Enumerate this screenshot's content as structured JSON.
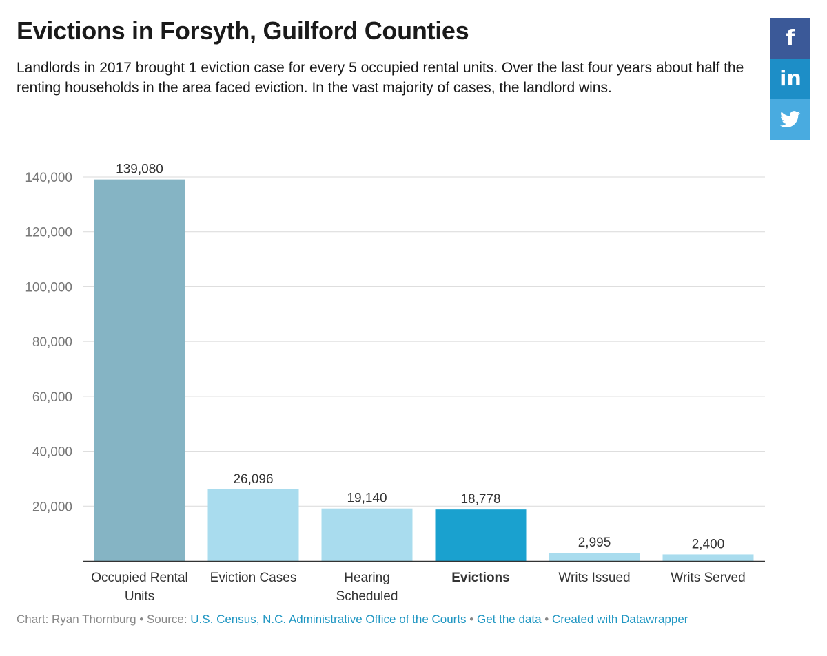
{
  "header": {
    "title": "Evictions in Forsyth, Guilford Counties",
    "description": "Landlords in 2017 brought 1 eviction case for every 5 occupied rental units. Over the last four years about half the renting households in the area faced eviction. In the vast majority of cases, the landlord wins."
  },
  "share": {
    "facebook_glyph": "f",
    "linkedin_glyph": "in"
  },
  "chart_data": {
    "type": "bar",
    "categories": [
      "Occupied Rental Units",
      "Eviction Cases",
      "Hearing Scheduled",
      "Evictions",
      "Writs Issued",
      "Writs Served"
    ],
    "category_lines": [
      [
        "Occupied Rental",
        "Units"
      ],
      [
        "Eviction Cases"
      ],
      [
        "Hearing",
        "Scheduled"
      ],
      [
        "Evictions"
      ],
      [
        "Writs Issued"
      ],
      [
        "Writs Served"
      ]
    ],
    "values": [
      139080,
      26096,
      19140,
      18778,
      2995,
      2400
    ],
    "value_labels": [
      "139,080",
      "26,096",
      "19,140",
      "18,778",
      "2,995",
      "2,400"
    ],
    "highlight_index": 3,
    "colors": [
      "#85b4c4",
      "#a9dcee",
      "#a9dcee",
      "#1aa1cf",
      "#a9dcee",
      "#a9dcee"
    ],
    "ylim": [
      0,
      140000
    ],
    "yticks": [
      20000,
      40000,
      60000,
      80000,
      100000,
      120000,
      140000
    ],
    "ytick_labels": [
      "20,000",
      "40,000",
      "60,000",
      "80,000",
      "100,000",
      "120,000",
      "140,000"
    ],
    "title": "Evictions in Forsyth, Guilford Counties",
    "xlabel": "",
    "ylabel": "",
    "grid": true
  },
  "footer": {
    "chart_prefix": "Chart: Ryan Thornburg",
    "sep": " • ",
    "source_prefix": "Source: ",
    "source_link": "U.S. Census, N.C. Administrative Office of the Courts",
    "get_data": "Get the data",
    "created_with": "Created with Datawrapper"
  }
}
